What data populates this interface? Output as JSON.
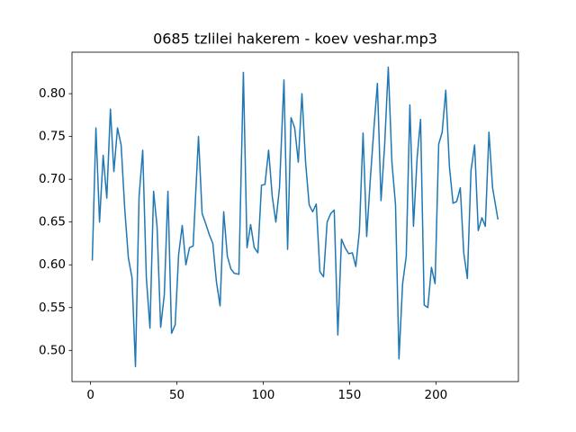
{
  "chart_data": {
    "type": "line",
    "title": "0685 tzlilei hakerem - koev veshar.mp3",
    "x": [
      1.0,
      3.1,
      5.2,
      7.3,
      9.4,
      11.5,
      13.5,
      15.6,
      17.7,
      19.8,
      21.9,
      24.0,
      26.0,
      28.1,
      30.2,
      32.3,
      34.4,
      36.5,
      38.5,
      40.6,
      42.7,
      44.8,
      46.9,
      49.0,
      51.0,
      53.1,
      55.2,
      57.3,
      59.4,
      62.5,
      64.6,
      66.7,
      68.8,
      70.8,
      72.9,
      75.0,
      77.1,
      79.2,
      81.3,
      83.3,
      85.9,
      88.5,
      90.6,
      92.7,
      94.8,
      96.9,
      99.0,
      101.0,
      103.1,
      105.2,
      107.3,
      109.4,
      112.0,
      114.1,
      116.1,
      118.2,
      120.3,
      122.4,
      124.5,
      126.6,
      128.6,
      130.7,
      132.8,
      134.9,
      137.0,
      139.1,
      141.1,
      143.2,
      145.3,
      147.4,
      149.5,
      151.6,
      153.6,
      155.7,
      157.8,
      159.9,
      162.0,
      164.1,
      166.1,
      168.2,
      170.3,
      172.4,
      174.5,
      176.6,
      178.6,
      180.7,
      182.8,
      184.9,
      187.0,
      189.1,
      191.1,
      193.2,
      195.3,
      197.4,
      199.5,
      201.6,
      203.6,
      205.7,
      207.8,
      209.9,
      212.0,
      214.1,
      216.1,
      218.2,
      220.3,
      222.4,
      224.5,
      226.6,
      228.6,
      230.7,
      232.8,
      235.9
    ],
    "series": [
      {
        "color": "#1f77b4",
        "values": [
          0.605,
          0.76,
          0.65,
          0.728,
          0.678,
          0.782,
          0.709,
          0.76,
          0.74,
          0.665,
          0.608,
          0.585,
          0.481,
          0.68,
          0.734,
          0.585,
          0.526,
          0.686,
          0.645,
          0.527,
          0.565,
          0.686,
          0.52,
          0.53,
          0.612,
          0.646,
          0.6,
          0.62,
          0.622,
          0.75,
          0.66,
          0.648,
          0.635,
          0.625,
          0.58,
          0.552,
          0.662,
          0.61,
          0.595,
          0.59,
          0.589,
          0.825,
          0.62,
          0.647,
          0.62,
          0.614,
          0.693,
          0.694,
          0.734,
          0.68,
          0.65,
          0.69,
          0.816,
          0.618,
          0.772,
          0.76,
          0.72,
          0.8,
          0.72,
          0.67,
          0.662,
          0.671,
          0.592,
          0.586,
          0.65,
          0.66,
          0.664,
          0.518,
          0.63,
          0.62,
          0.613,
          0.614,
          0.598,
          0.64,
          0.754,
          0.633,
          0.7,
          0.76,
          0.812,
          0.675,
          0.74,
          0.831,
          0.72,
          0.67,
          0.49,
          0.578,
          0.61,
          0.787,
          0.645,
          0.725,
          0.77,
          0.553,
          0.55,
          0.597,
          0.578,
          0.741,
          0.755,
          0.804,
          0.715,
          0.672,
          0.674,
          0.69,
          0.614,
          0.584,
          0.71,
          0.74,
          0.64,
          0.655,
          0.645,
          0.755,
          0.69,
          0.653
        ]
      }
    ],
    "xlim": [
      -10.75,
      247.75
    ],
    "xticks": [
      0,
      50,
      100,
      150,
      200
    ],
    "ylim": [
      0.4635,
      0.8485
    ],
    "yticks": [
      {
        "value": 0.5,
        "label": "0.50"
      },
      0.55,
      {
        "value": 0.6,
        "label": "0.60"
      },
      0.65,
      {
        "value": 0.7,
        "label": "0.70"
      },
      0.75,
      {
        "value": 0.8,
        "label": "0.80"
      }
    ]
  }
}
